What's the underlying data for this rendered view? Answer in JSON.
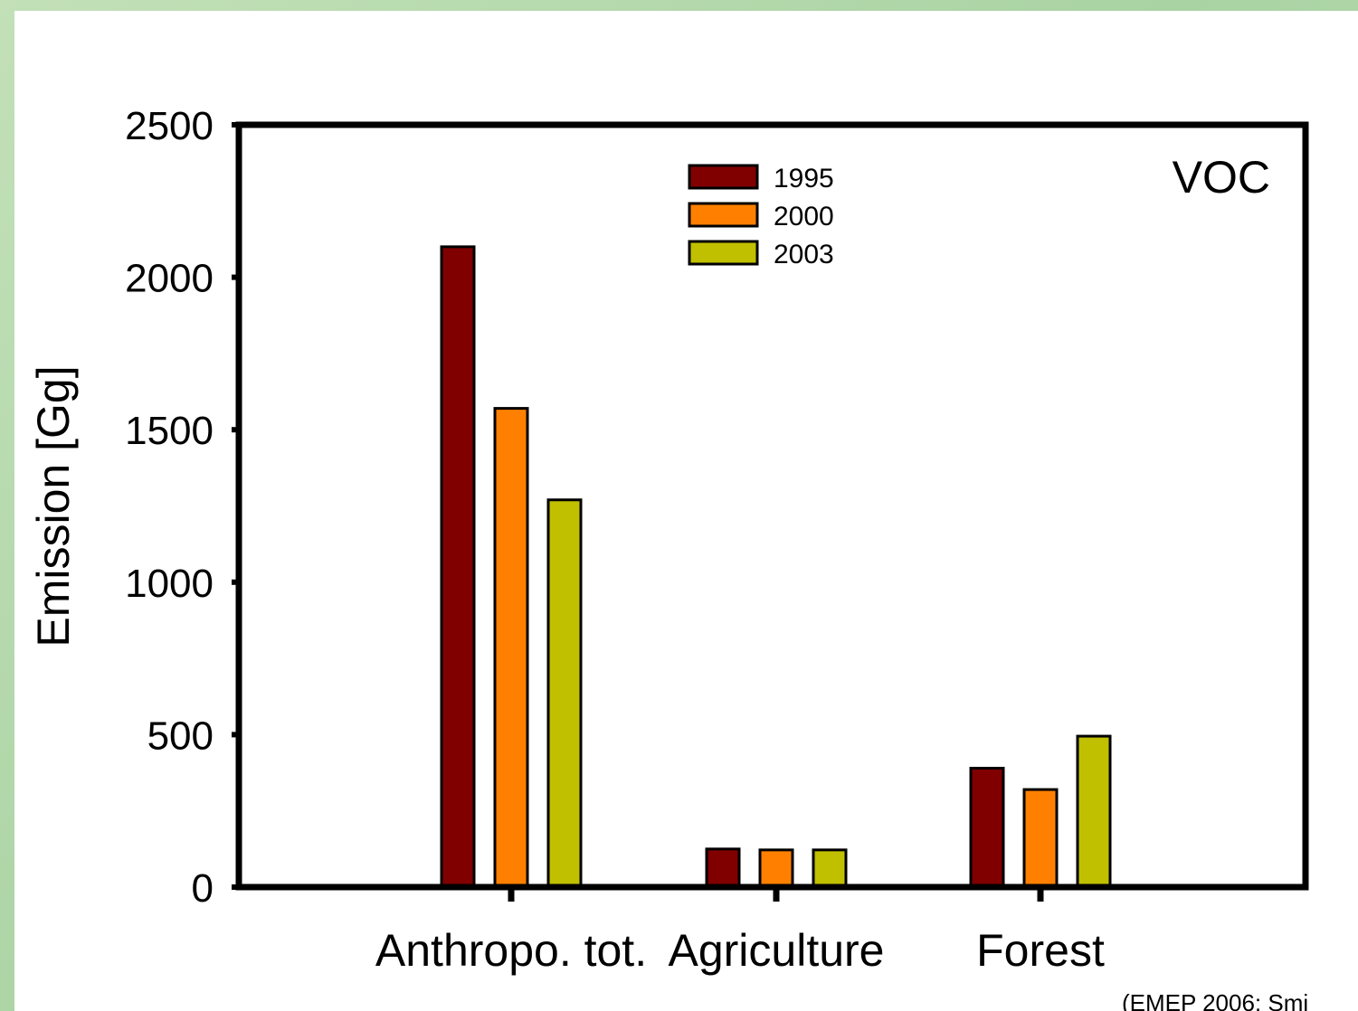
{
  "chart_data": {
    "type": "bar",
    "categories": [
      "Anthropo. tot.",
      "Agriculture",
      "Forest"
    ],
    "series": [
      {
        "name": "1995",
        "color": "#800000",
        "values": [
          2100,
          125,
          390
        ]
      },
      {
        "name": "2000",
        "color": "#ff8000",
        "values": [
          1570,
          122,
          320
        ]
      },
      {
        "name": "2003",
        "color": "#c0c000",
        "values": [
          1270,
          122,
          495
        ]
      }
    ],
    "ylabel": "Emission [Gg]",
    "ylim": [
      0,
      2500
    ],
    "yticks": [
      0,
      500,
      1000,
      1500,
      2000,
      2500
    ],
    "annotation": "VOC",
    "legend_position": "top-center",
    "grid": false
  },
  "source_note": "(EMEP 2006; Smi"
}
